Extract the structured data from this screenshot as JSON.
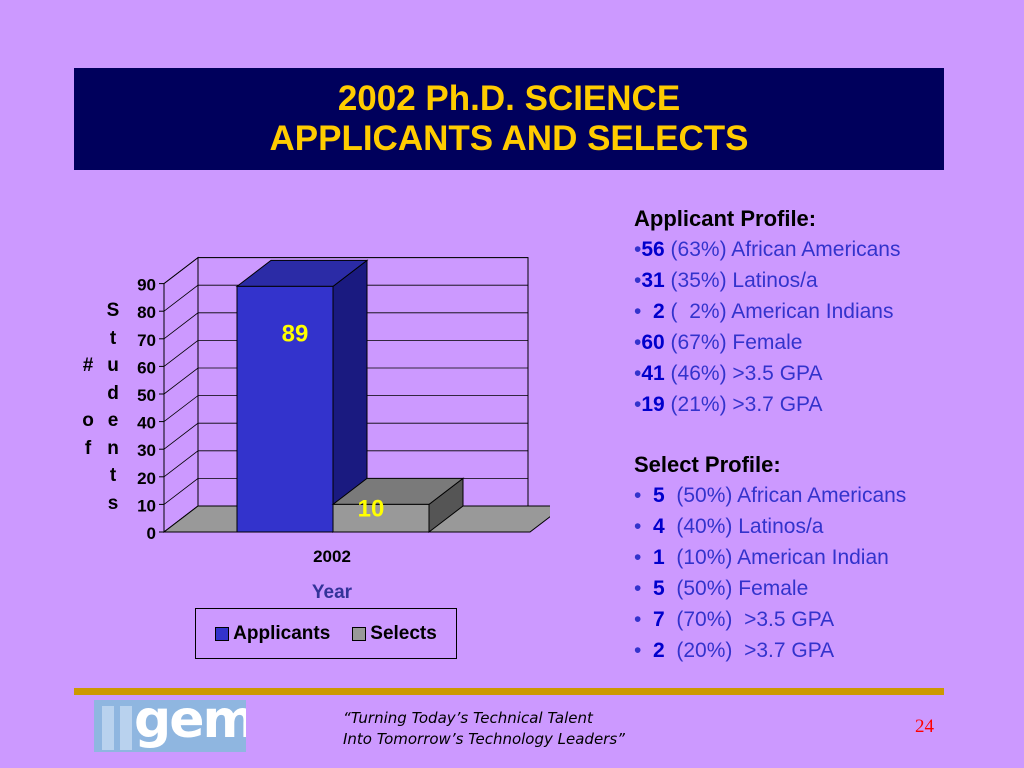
{
  "title": {
    "line1": "2002 Ph.D. SCIENCE",
    "line2": "APPLICANTS AND SELECTS"
  },
  "chart_data": {
    "type": "bar",
    "categories": [
      "2002"
    ],
    "series": [
      {
        "name": "Applicants",
        "values": [
          89
        ],
        "color": "#3333cc"
      },
      {
        "name": "Selects",
        "values": [
          10
        ],
        "color": "#999999"
      }
    ],
    "xlabel": "Year",
    "ylabel_lines": [
      "# of",
      "Students"
    ],
    "ylim": [
      0,
      90
    ],
    "yticks": [
      "0",
      "10",
      "20",
      "30",
      "40",
      "50",
      "60",
      "70",
      "80",
      "90"
    ],
    "data_labels": [
      "89",
      "10"
    ],
    "data_label_color": "#ffff00",
    "legend_position": "bottom",
    "grid": true
  },
  "ylabel": {
    "col1": [
      "#",
      "o",
      "f"
    ],
    "col2": [
      "S",
      "t",
      "u",
      "d",
      "e",
      "n",
      "t",
      "s"
    ]
  },
  "legend": {
    "applicants": "Applicants",
    "selects": "Selects"
  },
  "applicant_profile": {
    "heading": "Applicant Profile:",
    "items": [
      {
        "prefix": "•",
        "num": "56",
        "text": " (63%) African Americans"
      },
      {
        "prefix": "•",
        "num": "31",
        "text": " (35%) Latinos/a"
      },
      {
        "prefix": "•  ",
        "num": "2",
        "text": " (  2%) American Indians"
      },
      {
        "prefix": "•",
        "num": "60",
        "text": " (67%) Female"
      },
      {
        "prefix": "•",
        "num": "41",
        "text": " (46%) >3.5 GPA"
      },
      {
        "prefix": "•",
        "num": "19",
        "text": " (21%) >3.7 GPA"
      }
    ]
  },
  "select_profile": {
    "heading": "Select Profile:",
    "items": [
      {
        "prefix": "•  ",
        "num": "5",
        "text": "  (50%) African Americans"
      },
      {
        "prefix": "•  ",
        "num": "4",
        "text": "  (40%) Latinos/a"
      },
      {
        "prefix": "•  ",
        "num": "1",
        "text": "  (10%) American Indian"
      },
      {
        "prefix": "•  ",
        "num": "5",
        "text": "  (50%) Female"
      },
      {
        "prefix": "•  ",
        "num": "7",
        "text": "  (70%)  >3.5 GPA"
      },
      {
        "prefix": "•  ",
        "num": "2",
        "text": "  (20%)  >3.7 GPA"
      }
    ]
  },
  "footer": {
    "logo_text": "gem",
    "slogan_line1": "“Turning Today’s Technical Talent",
    "slogan_line2": "Into Tomorrow’s Technology Leaders”",
    "page_number": "24"
  },
  "colors": {
    "background": "#cc99ff",
    "title_bg": "#00005c",
    "title_text": "#ffcc00",
    "accent_rule": "#cc9900",
    "page_number": "#ff0000"
  }
}
